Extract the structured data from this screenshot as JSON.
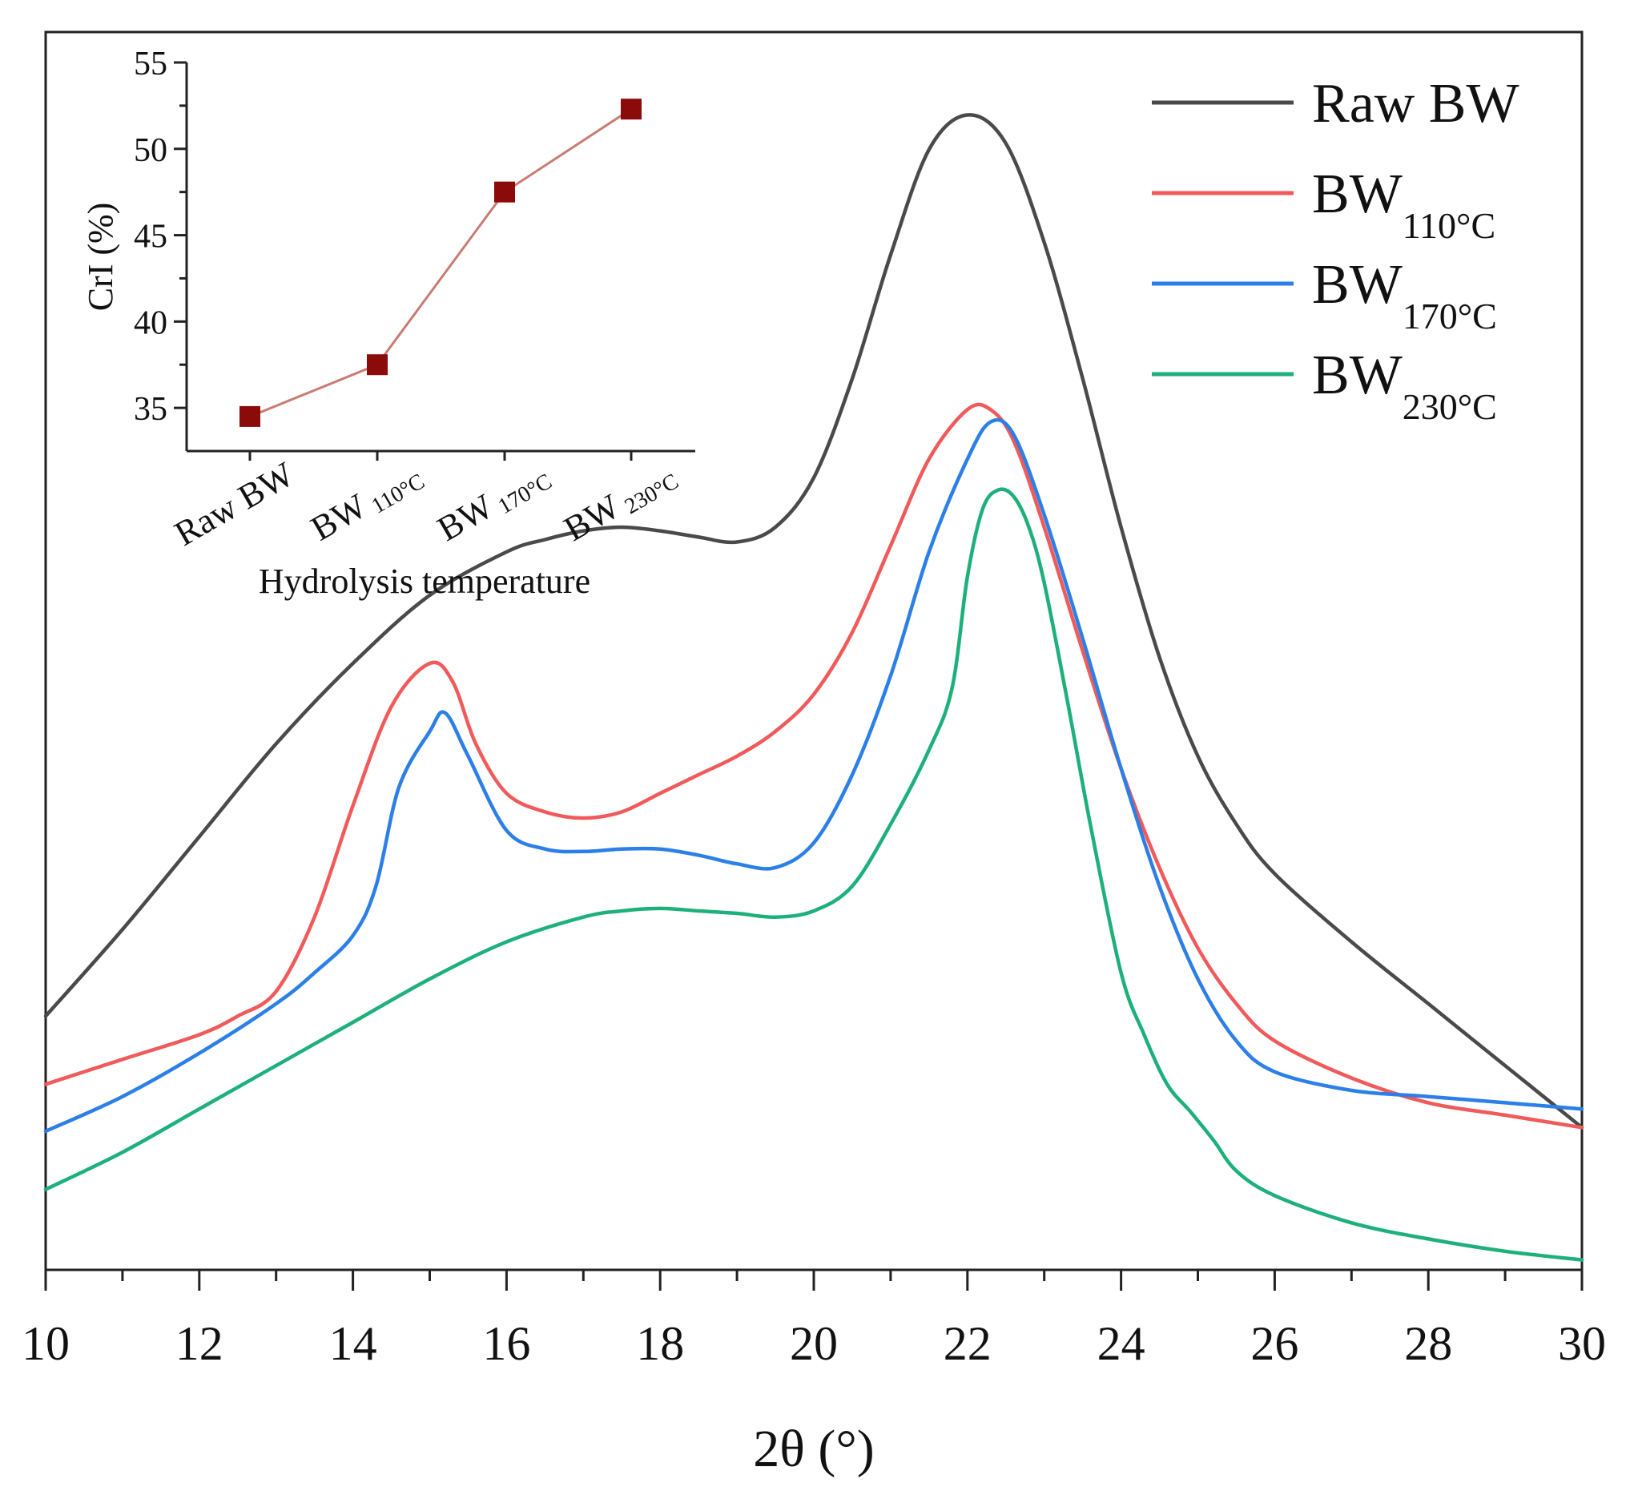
{
  "chart_data": [
    {
      "type": "line",
      "title": "",
      "xlabel": "2θ (°)",
      "ylabel": "",
      "xlim": [
        10,
        30
      ],
      "ylim": [
        0,
        100
      ],
      "xticks": [
        10,
        12,
        14,
        16,
        18,
        20,
        22,
        24,
        26,
        28,
        30
      ],
      "xtick_labels": [
        "10",
        "12",
        "14",
        "16",
        "18",
        "20",
        "22",
        "24",
        "26",
        "28",
        "30"
      ],
      "grid": false,
      "legend_position": "top-right",
      "legend": [
        {
          "label": "Raw BW",
          "base": "Raw BW",
          "sub": ""
        },
        {
          "label": "BW110°C",
          "base": "BW",
          "sub": "110°C"
        },
        {
          "label": "BW170°C",
          "base": "BW",
          "sub": "170°C"
        },
        {
          "label": "BW230°C",
          "base": "BW",
          "sub": "230°C"
        }
      ],
      "series": [
        {
          "name": "Raw BW",
          "color": "#4a4a4a",
          "x": [
            10,
            11,
            12,
            13,
            14,
            15,
            16,
            16.5,
            17,
            17.5,
            18,
            18.5,
            19,
            19.5,
            20,
            20.5,
            21,
            21.5,
            22,
            22.5,
            23,
            23.5,
            24,
            24.5,
            25,
            25.5,
            26,
            27,
            28,
            29,
            30
          ],
          "y": [
            20.5,
            27.5,
            35,
            42.5,
            49,
            54.5,
            58,
            59,
            59.7,
            60,
            59.7,
            59.2,
            58.8,
            60,
            64,
            72,
            82,
            90.5,
            93.3,
            91,
            83,
            72,
            60,
            49.5,
            41.5,
            36,
            32,
            26.5,
            21.5,
            16.5,
            11.5
          ]
        },
        {
          "name": "BW110°C",
          "color": "#f05a5a",
          "x": [
            10,
            11,
            12,
            12.5,
            13,
            13.5,
            14,
            14.5,
            15,
            15.3,
            15.6,
            16,
            16.5,
            17,
            17.5,
            18,
            18.5,
            19,
            19.5,
            20,
            20.5,
            21,
            21.5,
            22,
            22.3,
            22.6,
            23,
            23.5,
            24,
            24.5,
            25,
            25.5,
            26,
            27,
            28,
            29,
            30
          ],
          "y": [
            15,
            17,
            19,
            20.5,
            22.5,
            28.5,
            37.5,
            45.5,
            49,
            47.5,
            42.5,
            38.5,
            37,
            36.5,
            37,
            38.5,
            40,
            41.5,
            43.5,
            46.5,
            51.5,
            58.5,
            65.5,
            69.5,
            69.5,
            67,
            60,
            50,
            40.5,
            32.5,
            26,
            21.5,
            18.5,
            15.5,
            13.5,
            12.5,
            11.5
          ]
        },
        {
          "name": "BW170°C",
          "color": "#2b7fe6",
          "x": [
            10,
            11,
            12,
            13,
            13.5,
            14,
            14.3,
            14.6,
            15,
            15.2,
            15.5,
            16,
            16.5,
            17,
            17.5,
            18,
            18.5,
            19,
            19.5,
            20,
            20.5,
            21,
            21.5,
            22,
            22.3,
            22.6,
            23,
            23.5,
            24,
            24.5,
            25,
            25.5,
            26,
            27,
            28,
            29,
            30
          ],
          "y": [
            11.2,
            14,
            17.5,
            21.5,
            24,
            27,
            31,
            39,
            43.5,
            45,
            41.5,
            35.5,
            34,
            33.8,
            34,
            34,
            33.5,
            32.8,
            32.5,
            34.5,
            40,
            48,
            58,
            65.5,
            68.5,
            67.5,
            61,
            51,
            40.5,
            31,
            23.5,
            18.5,
            16,
            14.5,
            14,
            13.5,
            13
          ]
        },
        {
          "name": "BW230°C",
          "color": "#1db07a",
          "x": [
            10,
            11,
            12,
            13,
            14,
            15,
            16,
            17,
            17.5,
            18,
            18.5,
            19,
            19.5,
            20,
            20.5,
            21,
            21.5,
            21.8,
            22,
            22.2,
            22.4,
            22.6,
            22.8,
            23,
            23.3,
            23.6,
            24,
            24.3,
            24.6,
            24.9,
            25.2,
            25.5,
            26,
            27,
            28,
            29,
            30
          ],
          "y": [
            6.5,
            9.5,
            13,
            16.5,
            20,
            23.5,
            26.5,
            28.5,
            29,
            29.2,
            29,
            28.8,
            28.5,
            29,
            31,
            36,
            42,
            47,
            56,
            61.5,
            63,
            62.5,
            60,
            55.5,
            46,
            36,
            24,
            19,
            15,
            12.8,
            10.5,
            8,
            6,
            3.8,
            2.5,
            1.5,
            0.8
          ]
        }
      ]
    },
    {
      "type": "line",
      "title": "",
      "xlabel": "Hydrolysis temperature",
      "ylabel": "CrI (%)",
      "ylim": [
        32.5,
        55
      ],
      "yticks": [
        35,
        40,
        45,
        50,
        55
      ],
      "ytick_labels": [
        "35",
        "40",
        "45",
        "50",
        "55"
      ],
      "categories": [
        {
          "label": "Raw BW",
          "base": "Raw BW",
          "sub": ""
        },
        {
          "label": "BW110°C",
          "base": "BW",
          "sub": "110°C"
        },
        {
          "label": "BW170°C",
          "base": "BW",
          "sub": "170°C"
        },
        {
          "label": "BW230°C",
          "base": "BW",
          "sub": "230°C"
        }
      ],
      "marker": "square",
      "marker_color": "#8b0a0a",
      "line_color": "#c97b72",
      "values": [
        34.5,
        37.5,
        47.5,
        52.3
      ]
    }
  ]
}
